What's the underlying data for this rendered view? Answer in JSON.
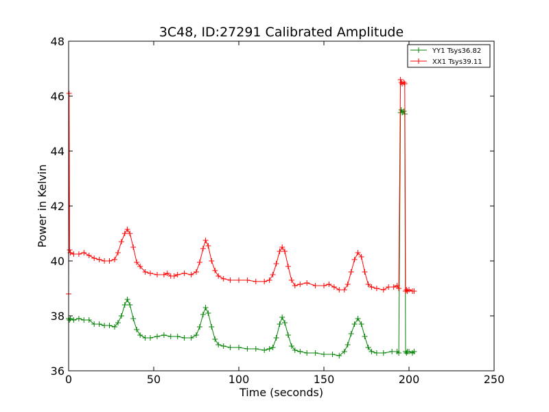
{
  "chart_data": {
    "type": "line",
    "title": "3C48, ID:27291 Calibrated Amplitude",
    "xlabel": "Time (seconds)",
    "ylabel": "Power in Kelvin",
    "xlim": [
      0,
      250
    ],
    "ylim": [
      36,
      48
    ],
    "x_ticks": [
      0,
      50,
      100,
      150,
      200,
      250
    ],
    "y_ticks": [
      36,
      38,
      40,
      42,
      44,
      46,
      48
    ],
    "x_tick_labels": [
      "0",
      "50",
      "100",
      "150",
      "200",
      "250"
    ],
    "y_tick_labels": [
      "36",
      "38",
      "40",
      "42",
      "44",
      "46",
      "48"
    ],
    "grid": false,
    "legend_position": "top-right",
    "series": [
      {
        "name": "YY1 Tsys36.82",
        "color": "#008000",
        "marker": "+",
        "x": [
          0,
          0.5,
          1,
          3,
          6,
          9,
          12,
          15,
          18,
          21,
          24,
          27,
          29,
          31,
          33,
          34.5,
          36,
          38,
          40,
          42,
          45,
          48,
          52,
          56,
          60,
          64,
          68,
          72,
          75,
          77,
          79,
          80.5,
          82,
          84,
          86,
          88,
          91,
          95,
          100,
          105,
          110,
          115,
          118,
          120,
          122,
          124,
          125.5,
          127,
          129,
          131,
          133,
          136,
          140,
          145,
          150,
          155,
          159,
          162,
          164,
          166,
          168,
          170,
          172,
          174,
          176,
          178,
          181,
          185,
          190,
          193,
          194,
          195,
          195.5,
          196,
          197,
          197.5,
          198,
          198.5,
          199,
          200,
          202,
          203
        ],
        "values": [
          37.9,
          37.85,
          37.9,
          37.85,
          37.9,
          37.85,
          37.85,
          37.7,
          37.7,
          37.65,
          37.65,
          37.6,
          37.75,
          38.0,
          38.4,
          38.6,
          38.4,
          37.9,
          37.5,
          37.3,
          37.2,
          37.2,
          37.25,
          37.3,
          37.25,
          37.25,
          37.2,
          37.2,
          37.3,
          37.6,
          38.05,
          38.3,
          38.1,
          37.6,
          37.15,
          36.95,
          36.9,
          36.85,
          36.85,
          36.8,
          36.8,
          36.75,
          36.8,
          36.85,
          37.2,
          37.7,
          37.95,
          37.75,
          37.3,
          36.9,
          36.75,
          36.7,
          36.65,
          36.65,
          36.6,
          36.6,
          36.55,
          36.7,
          36.95,
          37.35,
          37.7,
          37.9,
          37.7,
          37.25,
          36.85,
          36.7,
          36.65,
          36.65,
          36.7,
          36.7,
          36.65,
          45.4,
          45.5,
          45.4,
          45.45,
          45.35,
          36.7,
          36.65,
          36.7,
          36.7,
          36.65,
          36.7
        ]
      },
      {
        "name": "XX1 Tsys39.11",
        "color": "#ff0000",
        "marker": "+",
        "x": [
          0,
          0.3,
          0.6,
          1,
          3,
          6,
          9,
          12,
          15,
          18,
          21,
          24,
          27,
          29,
          31,
          33,
          34.5,
          36,
          38,
          40,
          42,
          45,
          48,
          52,
          56,
          58,
          60,
          62,
          64,
          68,
          72,
          75,
          77,
          79,
          80.5,
          82,
          84,
          86,
          88,
          91,
          95,
          100,
          105,
          110,
          115,
          118,
          120,
          122,
          124,
          125.5,
          127,
          129,
          131,
          133,
          136,
          140,
          145,
          150,
          153,
          156,
          159,
          162,
          164,
          166,
          168,
          170,
          172,
          174,
          176,
          178,
          181,
          185,
          188,
          191,
          193,
          194,
          195,
          195.5,
          196,
          197,
          197.5,
          198,
          198.5,
          199,
          200,
          202,
          203
        ],
        "values": [
          38.8,
          46.1,
          40.4,
          40.3,
          40.25,
          40.25,
          40.3,
          40.2,
          40.1,
          40.05,
          40.0,
          40.0,
          40.05,
          40.3,
          40.7,
          41.0,
          41.15,
          41.0,
          40.5,
          39.95,
          39.8,
          39.6,
          39.55,
          39.5,
          39.5,
          39.55,
          39.45,
          39.45,
          39.5,
          39.55,
          39.5,
          39.6,
          39.95,
          40.45,
          40.75,
          40.55,
          40.0,
          39.65,
          39.45,
          39.35,
          39.3,
          39.3,
          39.3,
          39.25,
          39.25,
          39.3,
          39.5,
          39.9,
          40.35,
          40.5,
          40.35,
          39.8,
          39.3,
          39.1,
          39.15,
          39.2,
          39.1,
          39.1,
          39.15,
          39.05,
          38.95,
          38.95,
          39.15,
          39.6,
          40.05,
          40.3,
          40.15,
          39.6,
          39.15,
          39.05,
          39.0,
          38.95,
          39.05,
          39.05,
          39.1,
          39.0,
          46.6,
          46.5,
          46.45,
          46.5,
          46.45,
          38.9,
          38.95,
          38.9,
          38.95,
          38.9,
          38.9
        ]
      }
    ]
  }
}
